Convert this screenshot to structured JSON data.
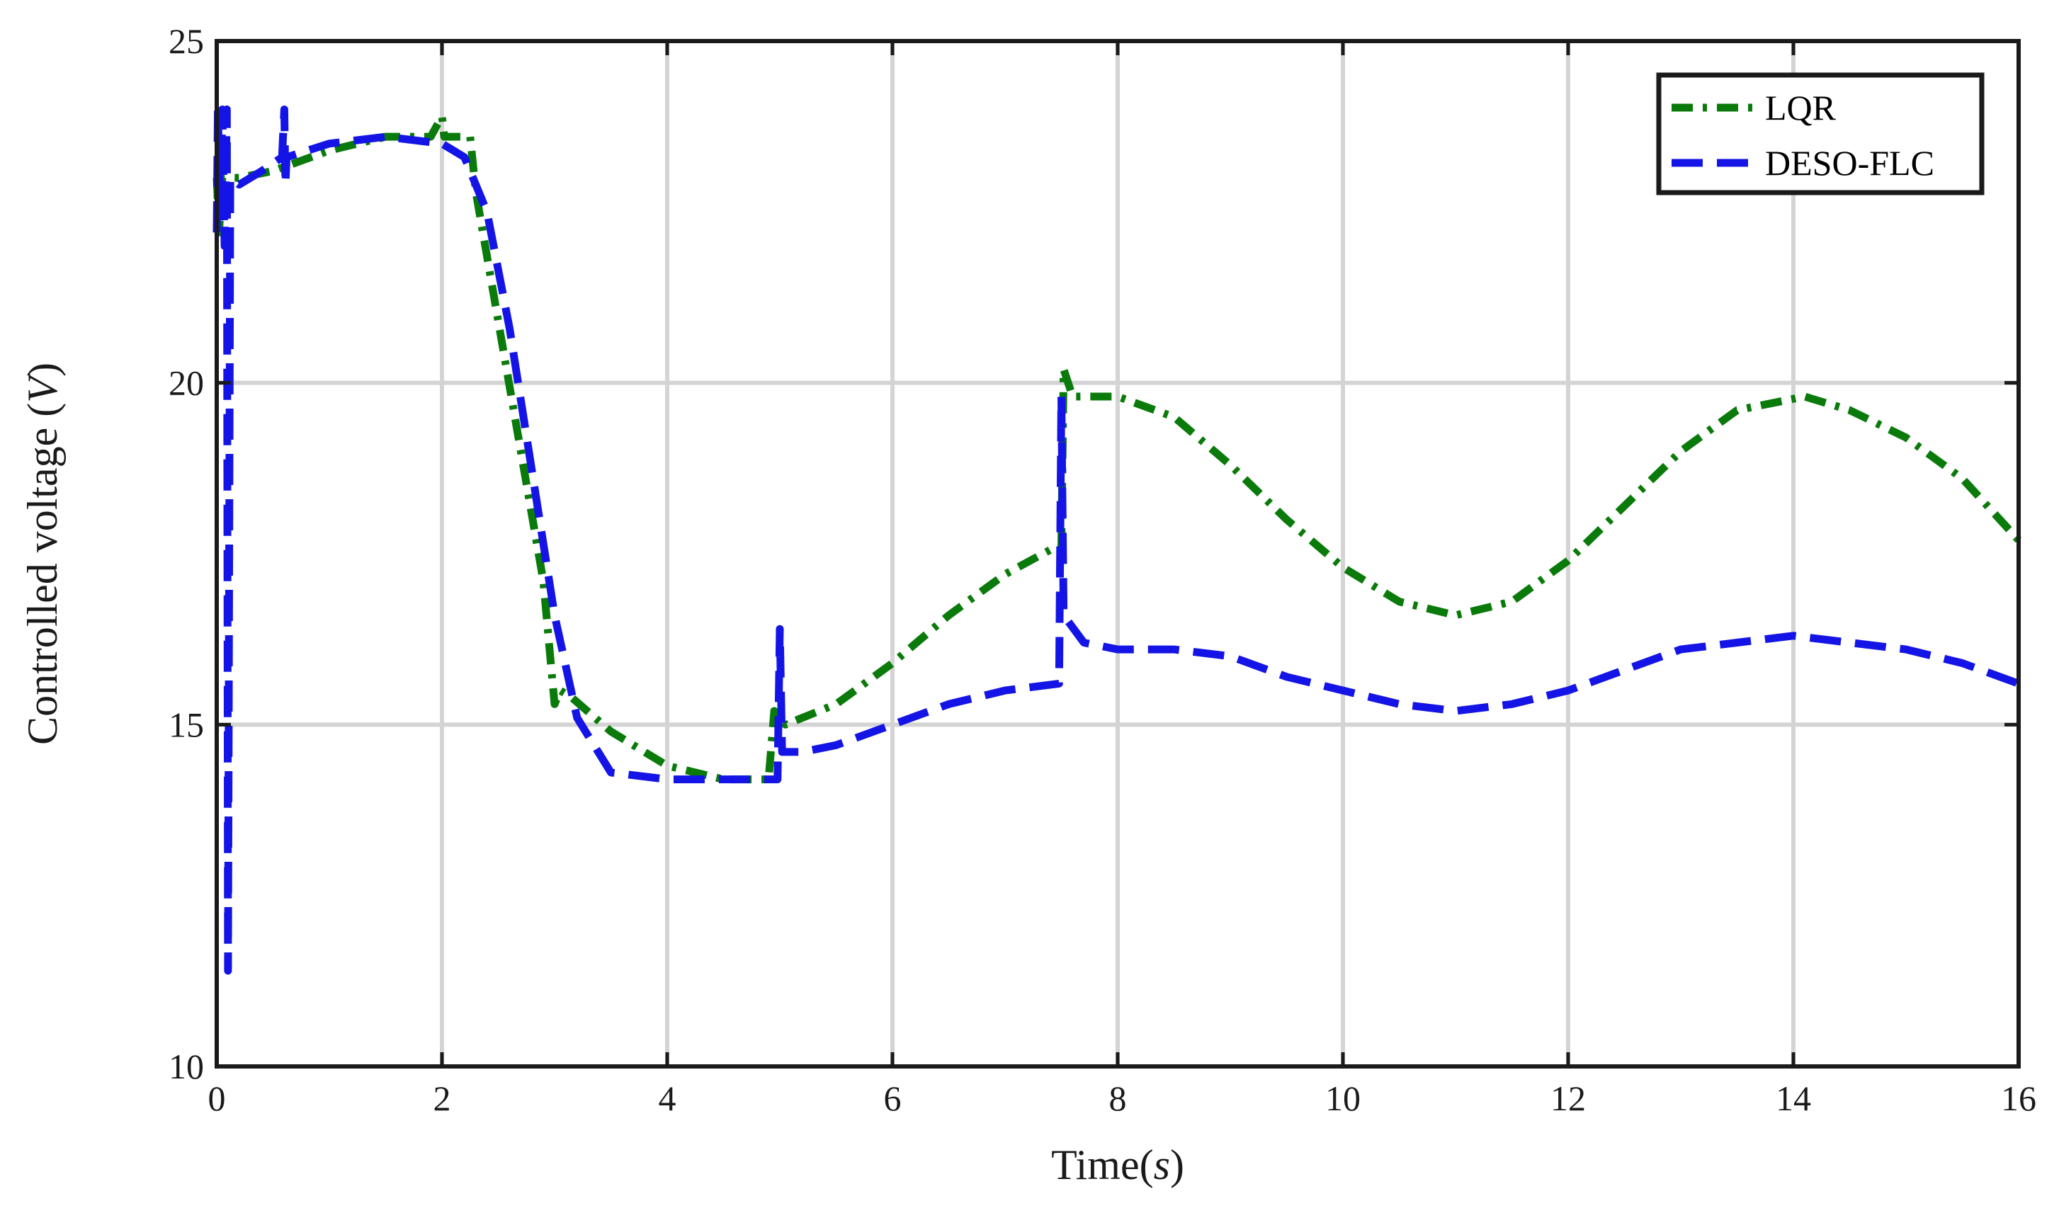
{
  "chart_data": {
    "type": "line",
    "xlabel": "Time",
    "xlabel_unit": "s",
    "ylabel": "Controlled voltage",
    "ylabel_unit": "V",
    "xlim": [
      0,
      16
    ],
    "ylim": [
      10,
      25
    ],
    "xticks": [
      "0",
      "2",
      "4",
      "6",
      "8",
      "10",
      "12",
      "14",
      "16"
    ],
    "yticks": [
      "10",
      "15",
      "20",
      "25"
    ],
    "grid": true,
    "legend_position": "top-right",
    "series": [
      {
        "name": "LQR",
        "color": "#0a7a0a",
        "style": "dash-dot",
        "points": [
          [
            0,
            23.0
          ],
          [
            0.02,
            22.2
          ],
          [
            0.05,
            23.0
          ],
          [
            0.2,
            23.0
          ],
          [
            0.5,
            23.1
          ],
          [
            1.0,
            23.4
          ],
          [
            1.5,
            23.6
          ],
          [
            1.9,
            23.6
          ],
          [
            2.0,
            23.9
          ],
          [
            2.02,
            23.6
          ],
          [
            2.25,
            23.6
          ],
          [
            2.3,
            22.8
          ],
          [
            2.5,
            20.9
          ],
          [
            2.7,
            19.0
          ],
          [
            2.9,
            17.1
          ],
          [
            3.0,
            15.3
          ],
          [
            3.05,
            15.5
          ],
          [
            3.15,
            15.4
          ],
          [
            3.5,
            14.9
          ],
          [
            4.0,
            14.4
          ],
          [
            4.5,
            14.2
          ],
          [
            4.9,
            14.2
          ],
          [
            4.95,
            15.2
          ],
          [
            5.0,
            15.1
          ],
          [
            5.05,
            15.0
          ],
          [
            5.5,
            15.3
          ],
          [
            6.0,
            15.9
          ],
          [
            6.5,
            16.6
          ],
          [
            7.0,
            17.2
          ],
          [
            7.45,
            17.6
          ],
          [
            7.5,
            17.6
          ],
          [
            7.52,
            20.2
          ],
          [
            7.6,
            19.8
          ],
          [
            8.0,
            19.8
          ],
          [
            8.5,
            19.5
          ],
          [
            9.0,
            18.8
          ],
          [
            9.5,
            18.0
          ],
          [
            10.0,
            17.3
          ],
          [
            10.5,
            16.8
          ],
          [
            11.0,
            16.6
          ],
          [
            11.5,
            16.8
          ],
          [
            12.0,
            17.4
          ],
          [
            12.5,
            18.2
          ],
          [
            13.0,
            19.0
          ],
          [
            13.5,
            19.6
          ],
          [
            14.1,
            19.8
          ],
          [
            14.5,
            19.6
          ],
          [
            15.0,
            19.2
          ],
          [
            15.5,
            18.6
          ],
          [
            16.0,
            17.7
          ]
        ]
      },
      {
        "name": "DESO-FLC",
        "color": "#1414e6",
        "style": "dashed",
        "points": [
          [
            0,
            22.2
          ],
          [
            0.01,
            24.0
          ],
          [
            0.03,
            22.5
          ],
          [
            0.05,
            24.0
          ],
          [
            0.07,
            22.0
          ],
          [
            0.09,
            24.0
          ],
          [
            0.1,
            11.4
          ],
          [
            0.12,
            23.0
          ],
          [
            0.2,
            22.9
          ],
          [
            0.4,
            23.1
          ],
          [
            0.58,
            23.3
          ],
          [
            0.6,
            24.0
          ],
          [
            0.61,
            22.9
          ],
          [
            0.62,
            23.3
          ],
          [
            1.0,
            23.5
          ],
          [
            1.5,
            23.6
          ],
          [
            2.0,
            23.5
          ],
          [
            2.2,
            23.3
          ],
          [
            2.4,
            22.5
          ],
          [
            2.6,
            20.8
          ],
          [
            2.8,
            18.7
          ],
          [
            3.0,
            16.6
          ],
          [
            3.2,
            15.1
          ],
          [
            3.5,
            14.3
          ],
          [
            4.0,
            14.2
          ],
          [
            4.5,
            14.2
          ],
          [
            4.98,
            14.2
          ],
          [
            5.0,
            16.4
          ],
          [
            5.02,
            14.6
          ],
          [
            5.2,
            14.6
          ],
          [
            5.5,
            14.7
          ],
          [
            6.0,
            15.0
          ],
          [
            6.5,
            15.3
          ],
          [
            7.0,
            15.5
          ],
          [
            7.48,
            15.6
          ],
          [
            7.5,
            19.8
          ],
          [
            7.52,
            16.6
          ],
          [
            7.7,
            16.2
          ],
          [
            8.0,
            16.1
          ],
          [
            8.5,
            16.1
          ],
          [
            9.0,
            16.0
          ],
          [
            9.5,
            15.7
          ],
          [
            10.0,
            15.5
          ],
          [
            10.5,
            15.3
          ],
          [
            11.0,
            15.2
          ],
          [
            11.5,
            15.3
          ],
          [
            12.0,
            15.5
          ],
          [
            12.5,
            15.8
          ],
          [
            13.0,
            16.1
          ],
          [
            13.5,
            16.2
          ],
          [
            14.0,
            16.3
          ],
          [
            14.5,
            16.2
          ],
          [
            15.0,
            16.1
          ],
          [
            15.5,
            15.9
          ],
          [
            16.0,
            15.6
          ]
        ]
      }
    ]
  }
}
